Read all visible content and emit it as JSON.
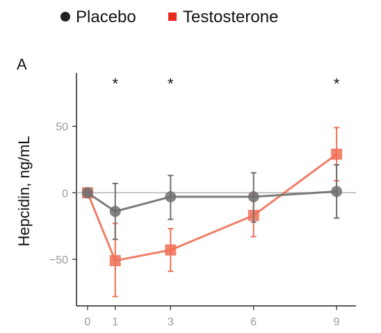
{
  "chart_data": {
    "type": "line",
    "panel_label": "A",
    "xlabel": "",
    "ylabel": "Hepcidin, ng/mL",
    "xlim": [
      -0.4,
      9.7
    ],
    "ylim": [
      -85,
      90
    ],
    "xticks": [
      0,
      1,
      3,
      6,
      9
    ],
    "xtick_labels": [
      "0",
      "1",
      "3",
      "6",
      "9"
    ],
    "yticks": [
      -50,
      0,
      50
    ],
    "ytick_labels": [
      "−50",
      "0",
      "50"
    ],
    "zero_line": true,
    "legend_position": "top",
    "significance_marks": [
      {
        "x": 1,
        "label": "*"
      },
      {
        "x": 3,
        "label": "*"
      },
      {
        "x": 9,
        "label": "*"
      }
    ],
    "series": [
      {
        "name": "Placebo",
        "marker": "circle",
        "color": "#6e6e6e",
        "legend_color": "#222222",
        "points": [
          {
            "x": 0,
            "y": 0,
            "low": 0,
            "high": 0
          },
          {
            "x": 1,
            "y": -14,
            "low": -35,
            "high": 7
          },
          {
            "x": 3,
            "y": -3,
            "low": -20,
            "high": 13
          },
          {
            "x": 6,
            "y": -3,
            "low": -22,
            "high": 15
          },
          {
            "x": 9,
            "y": 1,
            "low": -19,
            "high": 21
          }
        ]
      },
      {
        "name": "Testosterone",
        "marker": "square",
        "color": "#ef6f55",
        "legend_color": "#e8291c",
        "points": [
          {
            "x": 0,
            "y": 0,
            "low": 0,
            "high": 0
          },
          {
            "x": 1,
            "y": -51,
            "low": -78,
            "high": -23
          },
          {
            "x": 3,
            "y": -43,
            "low": -59,
            "high": -27
          },
          {
            "x": 6,
            "y": -17,
            "low": -33,
            "high": -1
          },
          {
            "x": 9,
            "y": 29,
            "low": 9,
            "high": 49
          }
        ]
      }
    ]
  }
}
